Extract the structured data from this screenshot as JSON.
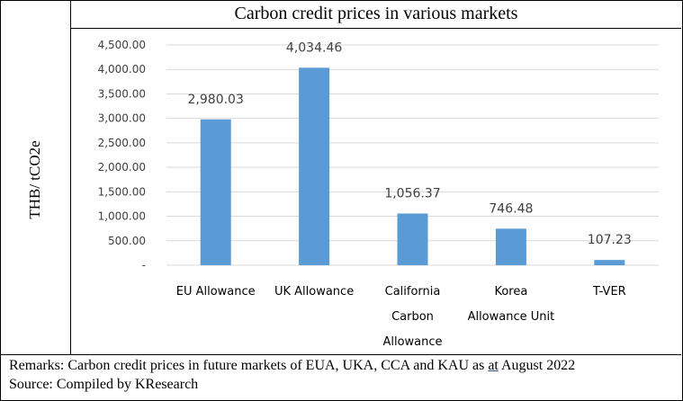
{
  "chart_data": {
    "type": "bar",
    "title": "Carbon credit prices in various markets",
    "ylabel": "THB/ tCO2e",
    "xlabel": "",
    "categories": [
      "EU Allowance",
      "UK Allowance",
      "California Carbon Allowance",
      "Korea Allowance Unit",
      "T-VER"
    ],
    "category_lines": [
      [
        "EU Allowance"
      ],
      [
        "UK Allowance"
      ],
      [
        "California",
        "Carbon",
        "Allowance"
      ],
      [
        "Korea",
        "Allowance Unit"
      ],
      [
        "T-VER"
      ]
    ],
    "values": [
      2980.03,
      4034.46,
      1056.37,
      746.48,
      107.23
    ],
    "value_labels": [
      "2,980.03",
      "4,034.46",
      "1,056.37",
      "746.48",
      "107.23"
    ],
    "ylim": [
      0,
      4500
    ],
    "yticks": [
      0,
      500,
      1000,
      1500,
      2000,
      2500,
      3000,
      3500,
      4000,
      4500
    ],
    "ytick_labels": [
      "-",
      "500.00",
      "1,000.00",
      "1,500.00",
      "2,000.00",
      "2,500.00",
      "3,000.00",
      "3,500.00",
      "4,000.00",
      "4,500.00"
    ],
    "grid": true,
    "bar_color": "#5b9bd5",
    "grid_color": "#d9d9d9"
  },
  "footer": {
    "remarks_before": "Remarks: Carbon credit prices in future markets of EUA, UKA, CCA and KAU as ",
    "remarks_underlined": "at",
    "remarks_after": " August 2022",
    "source": "Source: Compiled by KResearch"
  }
}
